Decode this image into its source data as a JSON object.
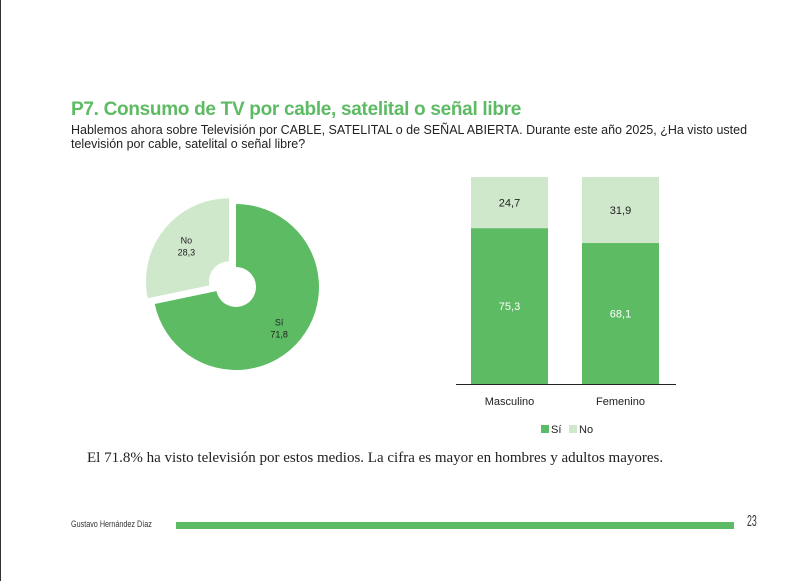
{
  "header": {
    "title": "P7. Consumo de TV por cable, satelital o señal libre",
    "subtitle": "Hablemos ahora sobre Televisión por CABLE, SATELITAL o de SEÑAL ABIERTA. Durante este año 2025, ¿Ha visto usted televisión por cable, satelital o señal libre?"
  },
  "colors": {
    "si": "#5dbb63",
    "no": "#cfe8cc",
    "accent": "#5dbb63"
  },
  "chart_data": [
    {
      "type": "pie",
      "variant": "donut",
      "slices": [
        {
          "label": "Sí",
          "value": 71.8,
          "display": "71,8"
        },
        {
          "label": "No",
          "value": 28.3,
          "display": "28,3"
        }
      ]
    },
    {
      "type": "bar",
      "stacked": true,
      "categories": [
        "Masculino",
        "Femenino"
      ],
      "series": [
        {
          "name": "Sí",
          "values": [
            75.3,
            68.1
          ],
          "display": [
            "75,3",
            "68,1"
          ]
        },
        {
          "name": "No",
          "values": [
            24.7,
            31.9
          ],
          "display": [
            "24,7",
            "31,9"
          ]
        }
      ],
      "ylim": [
        0,
        100
      ],
      "legend": "bottom",
      "legend_entries": [
        "Sí",
        "No"
      ]
    }
  ],
  "summary": "El 71.8% ha visto televisión por estos medios. La cifra es mayor en hombres y adultos mayores.",
  "footer": {
    "author": "Gustavo Hernández Díaz",
    "page": "23"
  }
}
